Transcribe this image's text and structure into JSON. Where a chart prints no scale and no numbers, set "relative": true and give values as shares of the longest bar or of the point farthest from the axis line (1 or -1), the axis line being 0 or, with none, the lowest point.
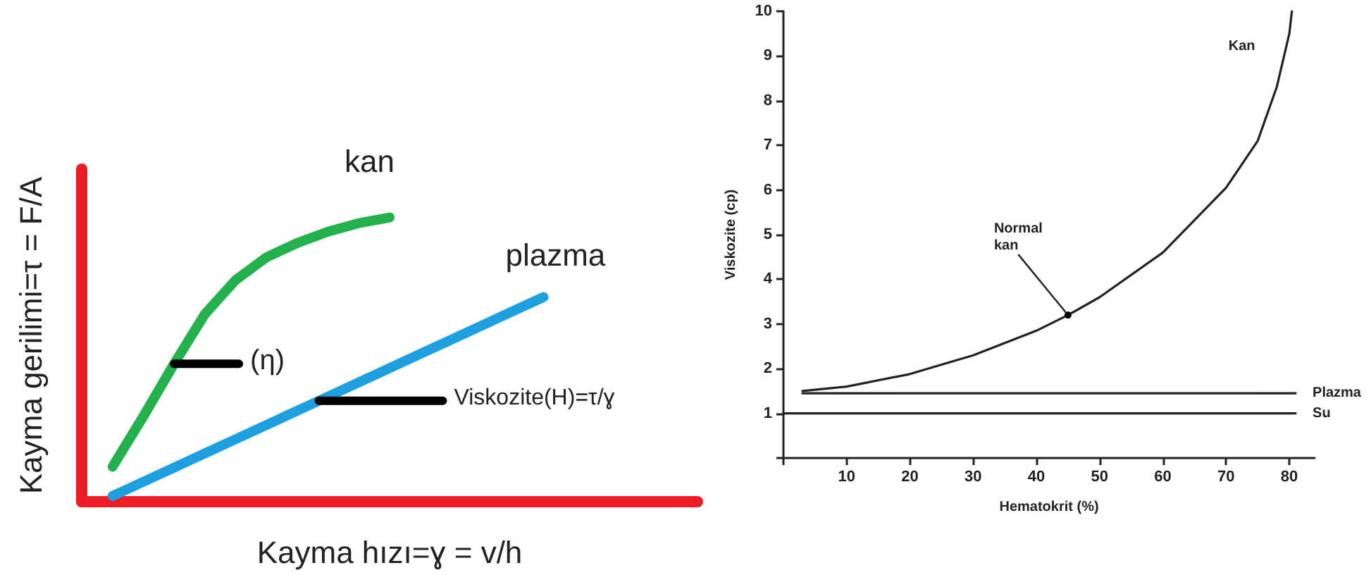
{
  "chart_data": [
    {
      "type": "line",
      "relative": true,
      "xlabel": "Kayma hızı=ɣ = v/h",
      "ylabel": "Kayma gerilimi=τ = F/A",
      "tick_labels": false,
      "grid": false,
      "legend": false,
      "marker": "none",
      "line_style": "solid",
      "categories": [
        null,
        null,
        null,
        null,
        null,
        null,
        null,
        null,
        null,
        null,
        null,
        null,
        null,
        null,
        null,
        null,
        null,
        null,
        null,
        null,
        null
      ],
      "annotations": [
        "(η)",
        "Viskozite(Η)=τ/ɣ"
      ],
      "series": [
        {
          "name": "kan",
          "color": "#22b14c",
          "values": [
            null,
            0.123,
            0.3,
            0.485,
            0.66,
            0.78,
            0.86,
            0.91,
            0.95,
            0.98,
            1,
            null,
            null,
            null,
            null,
            null,
            null,
            null,
            null,
            null,
            null
          ]
        },
        {
          "name": "plazma",
          "color": "#1ea0e0",
          "values": [
            null,
            0.02,
            0.07,
            0.12,
            0.17,
            0.22,
            0.27,
            0.32,
            0.37,
            0.42,
            0.47,
            0.52,
            0.57,
            0.62,
            0.67,
            0.72,
            null,
            null,
            null,
            null,
            null
          ]
        }
      ]
    },
    {
      "type": "line",
      "xlabel": "Hematokrit (%)",
      "ylabel": "Viskozite (cp)",
      "xlim": [
        0,
        84
      ],
      "ylim": [
        0,
        10
      ],
      "xticks": [
        {
          "value": 0,
          "label": null
        },
        10,
        20,
        30,
        40,
        50,
        60,
        70,
        80
      ],
      "yticks": [
        {
          "value": 0,
          "label": null
        },
        1,
        2,
        3,
        4,
        5,
        6,
        7,
        8,
        9,
        10
      ],
      "grid": false,
      "legend": false,
      "marker": "none",
      "line_style": "solid",
      "annotations": [
        {
          "text": "Normal\nkan",
          "x": 45,
          "y": 3.2
        }
      ],
      "series": [
        {
          "name": "Kan",
          "color": "#222222",
          "x": [
            3,
            10,
            20,
            30,
            40,
            45,
            50,
            60,
            70,
            75,
            78,
            80,
            80.4
          ],
          "values": [
            1.5,
            1.6,
            1.88,
            2.3,
            2.85,
            3.2,
            3.6,
            4.6,
            6.05,
            7.1,
            8.3,
            9.5,
            10
          ]
        },
        {
          "name": "Plazma",
          "color": "#222222",
          "x": [
            3,
            81
          ],
          "values": [
            1.45,
            1.45
          ]
        },
        {
          "name": "Su",
          "color": "#222222",
          "x": [
            0,
            81
          ],
          "values": [
            1,
            1
          ]
        }
      ]
    }
  ]
}
